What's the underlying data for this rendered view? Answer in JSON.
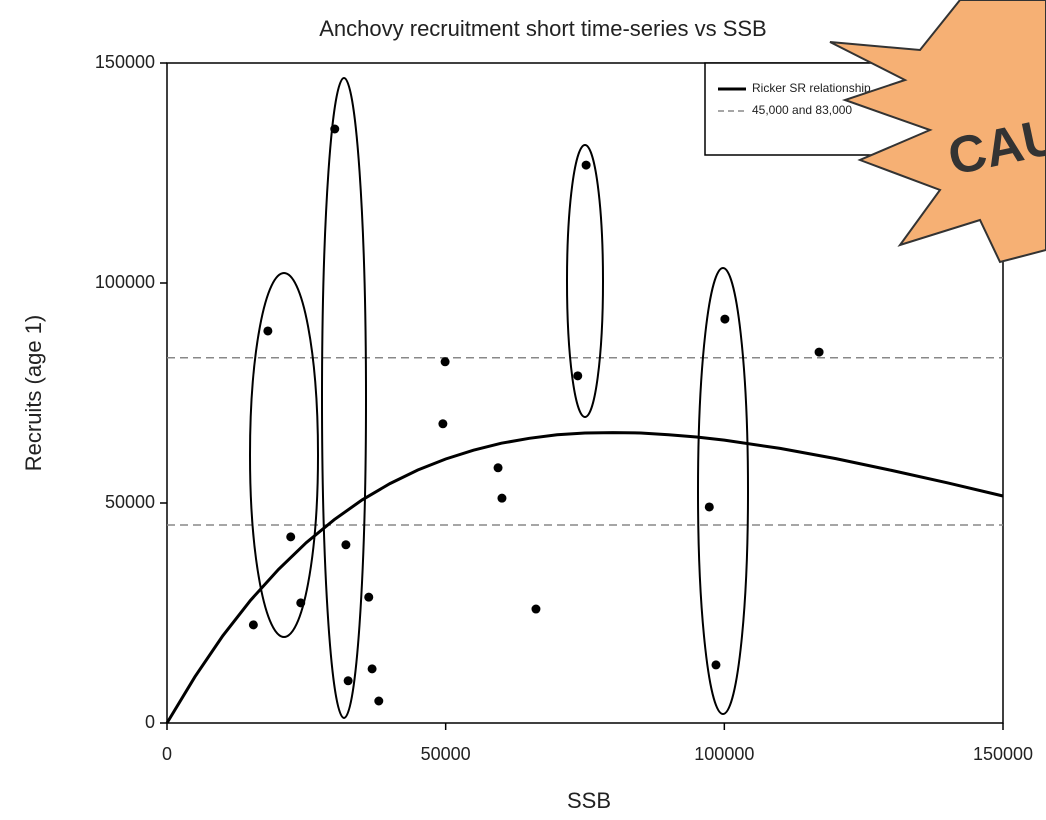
{
  "chart_data": {
    "type": "scatter",
    "title": "Anchovy recruitment short time-series vs SSB",
    "x_label": "SSB",
    "y_label": "Recruits (age 1)",
    "xlim": [
      0,
      150000
    ],
    "ylim": [
      0,
      150000
    ],
    "xticks": [
      0,
      50000,
      100000,
      150000
    ],
    "yticks": [
      0,
      50000,
      100000,
      150000
    ],
    "point_color": "#000000",
    "points": {
      "x": [
        15500,
        18100,
        22200,
        24000,
        30100,
        32100,
        32500,
        36200,
        36800,
        38000,
        49900,
        49500,
        59400,
        60100,
        66200,
        73700,
        75200,
        97300,
        98500,
        100100,
        117000
      ],
      "y": [
        22300,
        89100,
        42300,
        27300,
        135000,
        40500,
        9600,
        28600,
        12300,
        5000,
        82100,
        68000,
        58000,
        51100,
        25900,
        78900,
        126800,
        49100,
        13200,
        91800,
        84300
      ]
    },
    "curve": {
      "name": "Ricker SR relationship",
      "color": "#000000",
      "x": [
        0,
        5000,
        10000,
        15000,
        20000,
        25000,
        30000,
        35000,
        40000,
        45000,
        50000,
        55000,
        60000,
        65000,
        70000,
        75000,
        80000,
        85000,
        90000,
        95000,
        100000,
        110000,
        120000,
        130000,
        140000,
        150000
      ],
      "y": [
        0,
        10500,
        19800,
        27900,
        34900,
        41000,
        46200,
        50700,
        54400,
        57500,
        60000,
        62000,
        63600,
        64700,
        65500,
        65900,
        66000,
        65900,
        65500,
        65000,
        64300,
        62400,
        60100,
        57400,
        54600,
        51600
      ]
    },
    "reference_lines": {
      "name": "45,000 and 83,000",
      "color": "#888888",
      "values": [
        45000,
        83000
      ]
    },
    "legend": "upper right",
    "annotation": "CAU"
  }
}
